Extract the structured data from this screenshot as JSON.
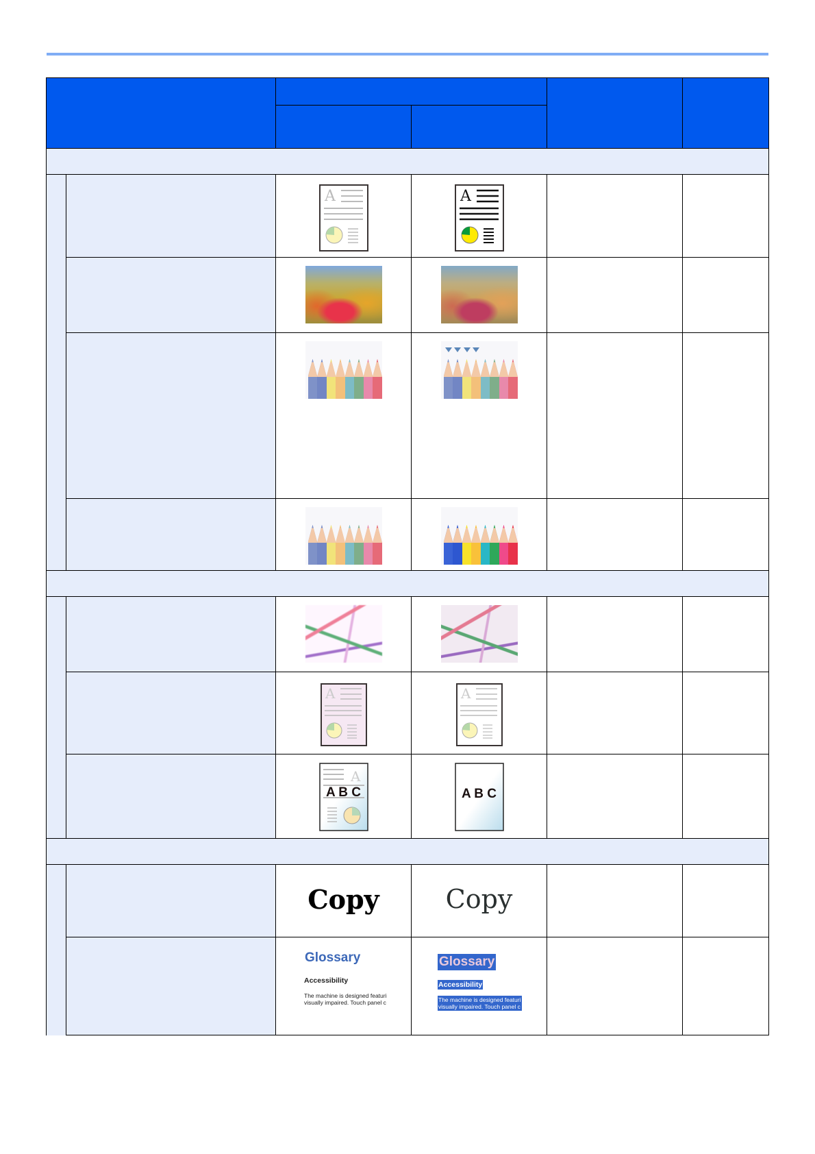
{
  "colors": {
    "header": "#0059ee",
    "band": "#e6edfb",
    "top_rule": "#80adf5"
  },
  "images": {
    "doc_letter": "A",
    "abc_text": "A B C",
    "copy_text": "Copy",
    "glossary": {
      "title": "Glossary",
      "subtitle": "Accessibility",
      "line1": "The machine is designed featuri",
      "line2": "visually impaired. Touch panel c"
    }
  }
}
